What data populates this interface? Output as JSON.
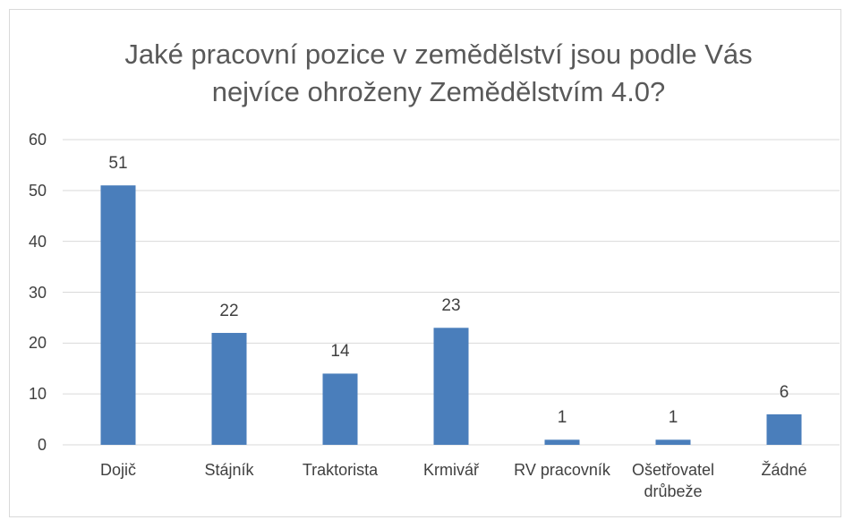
{
  "chart_data": {
    "type": "bar",
    "title": "Jaké pracovní pozice v zemědělství jsou podle Vás nejvíce ohroženy Zemědělstvím 4.0?",
    "categories": [
      "Dojič",
      "Stájník",
      "Traktorista",
      "Krmivář",
      "RV pracovník",
      "Ošetřovatel drůbeže",
      "Žádné"
    ],
    "values": [
      51,
      22,
      14,
      23,
      1,
      1,
      6
    ],
    "color": "#4a7ebb",
    "ylim": [
      0,
      60
    ],
    "yticks": [
      0,
      10,
      20,
      30,
      40,
      50,
      60
    ],
    "grid": true
  }
}
